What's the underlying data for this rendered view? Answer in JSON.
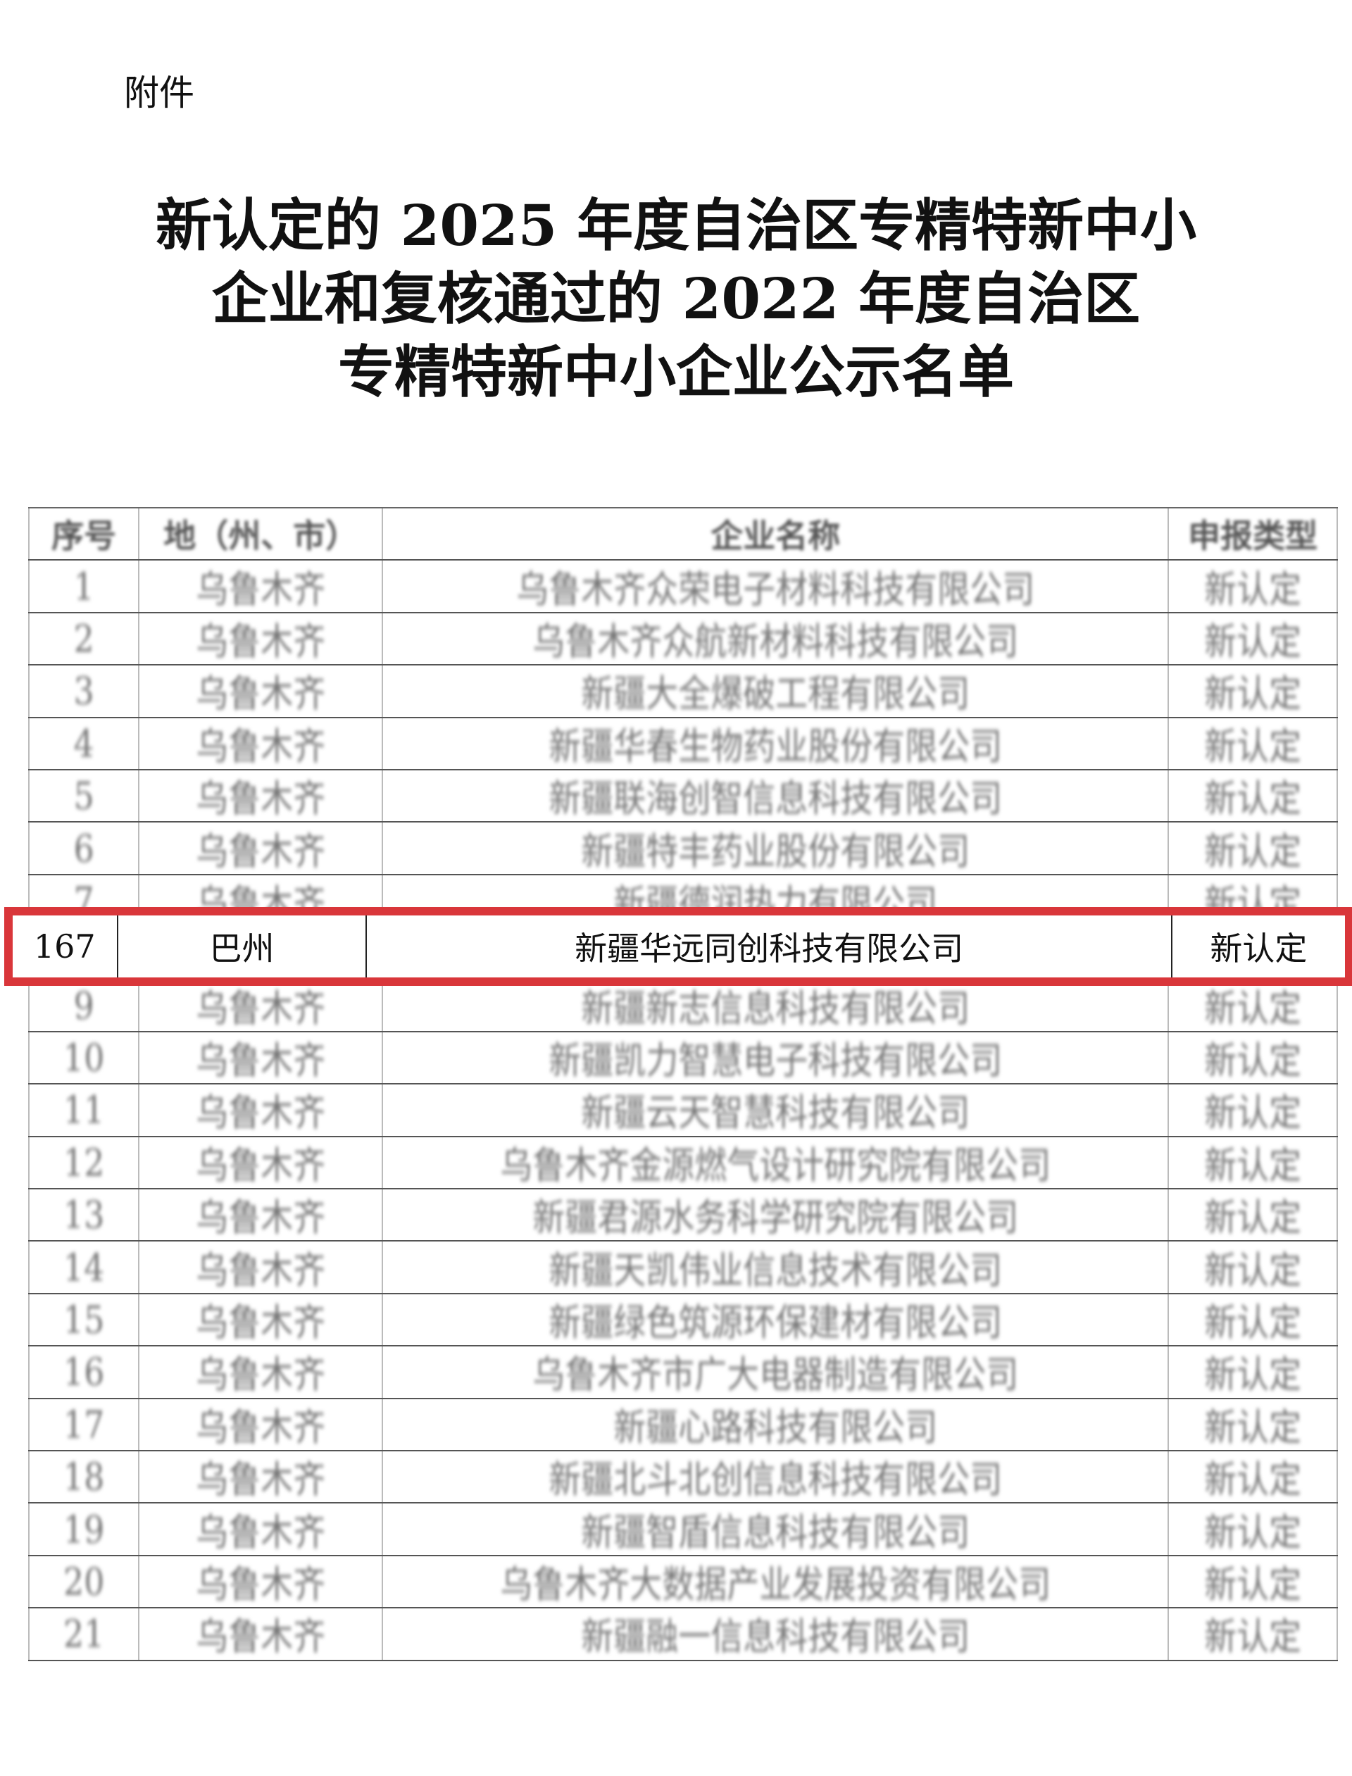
{
  "attachment_label": "附件",
  "title_lines": [
    "新认定的 2025 年度自治区专精特新中小",
    "企业和复核通过的 2022 年度自治区",
    "专精特新中小企业公示名单"
  ],
  "table": {
    "headers": [
      "序号",
      "地（州、市）",
      "企业名称",
      "申报类型"
    ],
    "rows_before": [
      {
        "no": "1",
        "region": "乌鲁木齐",
        "company": "乌鲁木齐众荣电子材料科技有限公司",
        "type": "新认定"
      },
      {
        "no": "2",
        "region": "乌鲁木齐",
        "company": "乌鲁木齐众航新材料科技有限公司",
        "type": "新认定"
      },
      {
        "no": "3",
        "region": "乌鲁木齐",
        "company": "新疆大全爆破工程有限公司",
        "type": "新认定"
      },
      {
        "no": "4",
        "region": "乌鲁木齐",
        "company": "新疆华春生物药业股份有限公司",
        "type": "新认定"
      },
      {
        "no": "5",
        "region": "乌鲁木齐",
        "company": "新疆联海创智信息科技有限公司",
        "type": "新认定"
      },
      {
        "no": "6",
        "region": "乌鲁木齐",
        "company": "新疆特丰药业股份有限公司",
        "type": "新认定"
      },
      {
        "no": "7",
        "region": "乌鲁木齐",
        "company": "新疆德润热力有限公司",
        "type": "新认定"
      }
    ],
    "highlighted_row": {
      "no": "167",
      "region": "巴州",
      "company": "新疆华远同创科技有限公司",
      "type": "新认定"
    },
    "highlight_color": "#d9363a",
    "rows_after": [
      {
        "no": "9",
        "region": "乌鲁木齐",
        "company": "新疆新志信息科技有限公司",
        "type": "新认定"
      },
      {
        "no": "10",
        "region": "乌鲁木齐",
        "company": "新疆凯力智慧电子科技有限公司",
        "type": "新认定"
      },
      {
        "no": "11",
        "region": "乌鲁木齐",
        "company": "新疆云天智慧科技有限公司",
        "type": "新认定"
      },
      {
        "no": "12",
        "region": "乌鲁木齐",
        "company": "乌鲁木齐金源燃气设计研究院有限公司",
        "type": "新认定"
      },
      {
        "no": "13",
        "region": "乌鲁木齐",
        "company": "新疆君源水务科学研究院有限公司",
        "type": "新认定"
      },
      {
        "no": "14",
        "region": "乌鲁木齐",
        "company": "新疆天凯伟业信息技术有限公司",
        "type": "新认定"
      },
      {
        "no": "15",
        "region": "乌鲁木齐",
        "company": "新疆绿色筑源环保建材有限公司",
        "type": "新认定"
      },
      {
        "no": "16",
        "region": "乌鲁木齐",
        "company": "乌鲁木齐市广大电器制造有限公司",
        "type": "新认定"
      },
      {
        "no": "17",
        "region": "乌鲁木齐",
        "company": "新疆心路科技有限公司",
        "type": "新认定"
      },
      {
        "no": "18",
        "region": "乌鲁木齐",
        "company": "新疆北斗北创信息科技有限公司",
        "type": "新认定"
      },
      {
        "no": "19",
        "region": "乌鲁木齐",
        "company": "新疆智盾信息科技有限公司",
        "type": "新认定"
      },
      {
        "no": "20",
        "region": "乌鲁木齐",
        "company": "乌鲁木齐大数据产业发展投资有限公司",
        "type": "新认定"
      },
      {
        "no": "21",
        "region": "乌鲁木齐",
        "company": "新疆融一信息科技有限公司",
        "type": "新认定"
      }
    ]
  }
}
